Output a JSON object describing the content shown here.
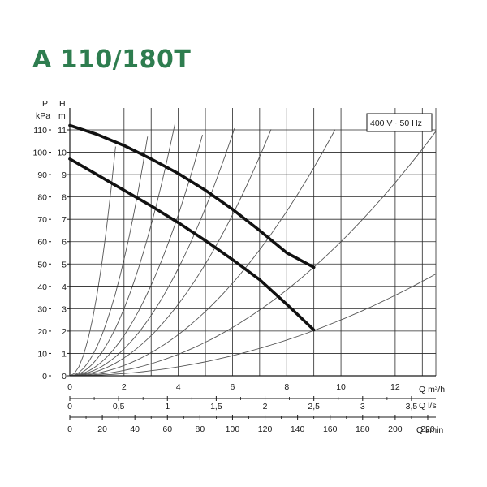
{
  "chart_data": {
    "type": "line",
    "title": "A 110/180T",
    "annotation": "400 V~ 50 Hz",
    "left_axis_p": {
      "unit_line1": "P",
      "unit_line2": "kPa",
      "ticks": [
        "0",
        "10",
        "20",
        "30",
        "40",
        "50",
        "60",
        "70",
        "80",
        "90",
        "100",
        "110"
      ]
    },
    "left_axis_h": {
      "unit_line1": "H",
      "unit_line2": "m",
      "ticks": [
        "0",
        "1",
        "2",
        "3",
        "4",
        "5",
        "6",
        "7",
        "8",
        "9",
        "10",
        "11"
      ],
      "range": [
        0,
        11
      ]
    },
    "x_axis_m3h": {
      "label": "Q m³/h",
      "ticks": [
        "0",
        "2",
        "4",
        "6",
        "8",
        "10",
        "12"
      ],
      "range": [
        0,
        13.5
      ]
    },
    "x_axis_ls": {
      "label": "Q l/s",
      "ticks": [
        "0",
        "0,5",
        "1",
        "1,5",
        "2",
        "2,5",
        "3",
        "3,5"
      ]
    },
    "x_axis_lmin": {
      "label": "Q l/min",
      "ticks": [
        "0",
        "20",
        "40",
        "60",
        "80",
        "100",
        "120",
        "140",
        "160",
        "180",
        "200",
        "220"
      ]
    },
    "grid": true,
    "series": [
      {
        "style": "thick",
        "x": [
          0,
          1,
          2,
          3,
          4,
          5,
          6,
          7,
          8,
          9
        ],
        "y": [
          11.2,
          10.8,
          10.3,
          9.7,
          9.05,
          8.3,
          7.45,
          6.5,
          5.5,
          4.85
        ]
      },
      {
        "style": "thick",
        "x": [
          0,
          1,
          2,
          3,
          4,
          5,
          6,
          7,
          8,
          9
        ],
        "y": [
          9.7,
          9.0,
          8.3,
          7.6,
          6.85,
          6.05,
          5.2,
          4.3,
          3.2,
          2.05
        ]
      },
      {
        "style": "thin",
        "x": [
          0,
          3
        ],
        "y": [
          4.0,
          4.0
        ]
      }
    ],
    "system_curves": [
      {
        "k": 3.6
      },
      {
        "k": 1.3
      },
      {
        "k": 0.75
      },
      {
        "k": 0.45
      },
      {
        "k": 0.3
      },
      {
        "k": 0.2
      },
      {
        "k": 0.115
      },
      {
        "k": 0.06
      },
      {
        "k": 0.025
      }
    ]
  }
}
